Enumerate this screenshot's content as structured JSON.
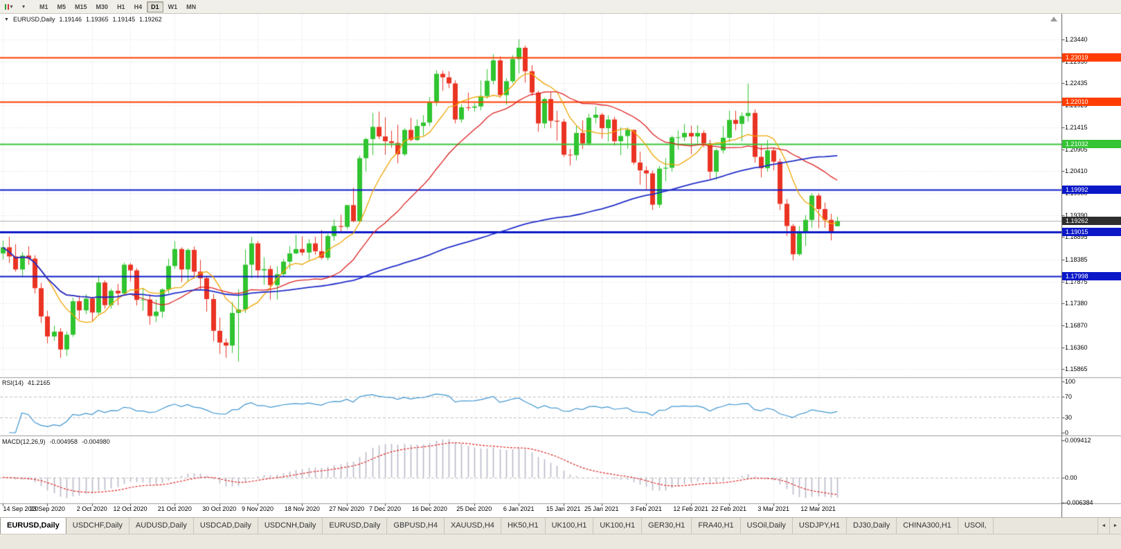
{
  "icons": {
    "ohlc_marker": "▼",
    "dropdown_caret": "▾",
    "scroll_left": "◄",
    "scroll_right": "►"
  },
  "colors": {
    "grid": "#dcdcdc",
    "axis_border": "#5a5a5a",
    "panel_separator": "#9c9c9c",
    "background": "#ffffff"
  },
  "toolbar": {
    "timeframes": [
      "M1",
      "M5",
      "M15",
      "M30",
      "H1",
      "H4",
      "D1",
      "W1",
      "MN"
    ],
    "selected_timeframe": "D1"
  },
  "chart_header": {
    "symbol": "EURUSD,Daily",
    "open": "1.19146",
    "high": "1.19365",
    "low": "1.19145",
    "close": "1.19262"
  },
  "price_axis": {
    "labels": [
      "1.23440",
      "1.22930",
      "1.22435",
      "1.21925",
      "1.21415",
      "1.20905",
      "1.20410",
      "1.19900",
      "1.19390",
      "1.18895",
      "1.18385",
      "1.17875",
      "1.17380",
      "1.16870",
      "1.16360",
      "1.15865"
    ]
  },
  "hlines": [
    {
      "label": "1.23019",
      "price": 1.23019,
      "color": "#ff3d00",
      "width": 2
    },
    {
      "label": "1.22010",
      "price": 1.2201,
      "color": "#ff3d00",
      "width": 2
    },
    {
      "label": "1.21032",
      "price": 1.21032,
      "color": "#35c435",
      "width": 2
    },
    {
      "label": "1.19992",
      "price": 1.19992,
      "color": "#0a18c8",
      "width": 2
    },
    {
      "label": "1.19015",
      "price": 1.19015,
      "color": "#0a18c8",
      "width": 3
    },
    {
      "label": "1.17998",
      "price": 1.17998,
      "color": "#0a18c8",
      "width": 2
    }
  ],
  "current_price": {
    "label": "1.19262",
    "price": 1.19262,
    "tag_color": "#2d2d2d",
    "line_color": "#b0b0b0"
  },
  "rsi": {
    "title": "RSI(14)",
    "value": "41.2165",
    "axis_labels": [
      "100",
      "70",
      "30",
      "0"
    ],
    "levels": [
      70,
      30
    ],
    "line_color": "#3e95d0"
  },
  "macd": {
    "title": "MACD(12,26,9)",
    "value": "-0.004958",
    "signal_value": "-0.004980",
    "axis_labels": [
      "0.009412",
      "0.00",
      "-0.006384"
    ],
    "histogram_color": "#b9b9c9",
    "signal_color": "#e02020"
  },
  "date_axis": [
    [
      "14 Sep 2020",
      0
    ],
    [
      "23 Sep 2020",
      7
    ],
    [
      "2 Oct 2020",
      14
    ],
    [
      "12 Oct 2020",
      20
    ],
    [
      "21 Oct 2020",
      27
    ],
    [
      "30 Oct 2020",
      34
    ],
    [
      "9 Nov 2020",
      40
    ],
    [
      "18 Nov 2020",
      47
    ],
    [
      "27 Nov 2020",
      54
    ],
    [
      "7 Dec 2020",
      60
    ],
    [
      "16 Dec 2020",
      67
    ],
    [
      "25 Dec 2020",
      74
    ],
    [
      "6 Jan 2021",
      81
    ],
    [
      "15 Jan 2021",
      88
    ],
    [
      "25 Jan 2021",
      94
    ],
    [
      "3 Feb 2021",
      101
    ],
    [
      "12 Feb 2021",
      108
    ],
    [
      "22 Feb 2021",
      114
    ],
    [
      "3 Mar 2021",
      121
    ],
    [
      "12 Mar 2021",
      128
    ]
  ],
  "tabs": {
    "items": [
      {
        "label": "EURUSD,Daily",
        "selected": true
      },
      {
        "label": "USDCHF,Daily",
        "selected": false
      },
      {
        "label": "AUDUSD,Daily",
        "selected": false
      },
      {
        "label": "USDCAD,Daily",
        "selected": false
      },
      {
        "label": "USDCNH,Daily",
        "selected": false
      },
      {
        "label": "EURUSD,Daily",
        "selected": false
      },
      {
        "label": "GBPUSD,H4",
        "selected": false
      },
      {
        "label": "XAUUSD,H4",
        "selected": false
      },
      {
        "label": "HK50,H1",
        "selected": false
      },
      {
        "label": "UK100,H1",
        "selected": false
      },
      {
        "label": "UK100,H1",
        "selected": false
      },
      {
        "label": "GER30,H1",
        "selected": false
      },
      {
        "label": "FRA40,H1",
        "selected": false
      },
      {
        "label": "USOil,Daily",
        "selected": false
      },
      {
        "label": "USDJPY,H1",
        "selected": false
      },
      {
        "label": "DJ30,Daily",
        "selected": false
      },
      {
        "label": "CHINA300,H1",
        "selected": false
      },
      {
        "label": "USOil,",
        "selected": false
      }
    ]
  },
  "chart_data": {
    "type": "candlestick",
    "symbol": "EURUSD",
    "timeframe": "Daily",
    "ylim": [
      1.1567,
      1.2403
    ],
    "rsi_range": [
      0,
      100
    ],
    "macd_range": [
      -0.006384,
      0.009412
    ],
    "up_color": "#30c430",
    "down_color": "#ea3323",
    "moving_averages": [
      {
        "name": "fast",
        "period": 8,
        "color": "#efa500",
        "width": 1.3
      },
      {
        "name": "medium",
        "period": 21,
        "color": "#dd2020",
        "width": 1.3
      },
      {
        "name": "slow",
        "period": 90,
        "color": "#1f2cc8",
        "width": 1.8
      }
    ],
    "candles": [
      [
        1.1852,
        1.1881,
        1.1838,
        1.1866
      ],
      [
        1.1866,
        1.189,
        1.183,
        1.1845
      ],
      [
        1.1845,
        1.1873,
        1.181,
        1.1815
      ],
      [
        1.1815,
        1.1855,
        1.18,
        1.1847
      ],
      [
        1.1847,
        1.1868,
        1.1826,
        1.184
      ],
      [
        1.184,
        1.1848,
        1.176,
        1.1772
      ],
      [
        1.1772,
        1.1784,
        1.1692,
        1.1707
      ],
      [
        1.1707,
        1.172,
        1.1645,
        1.1661
      ],
      [
        1.1661,
        1.1686,
        1.1651,
        1.1672
      ],
      [
        1.1672,
        1.168,
        1.1612,
        1.1631
      ],
      [
        1.1631,
        1.1672,
        1.1616,
        1.1665
      ],
      [
        1.1665,
        1.175,
        1.166,
        1.1742
      ],
      [
        1.1742,
        1.1755,
        1.17,
        1.1721
      ],
      [
        1.1721,
        1.1758,
        1.1712,
        1.1748
      ],
      [
        1.1748,
        1.1752,
        1.1695,
        1.1716
      ],
      [
        1.1716,
        1.1798,
        1.171,
        1.1785
      ],
      [
        1.1785,
        1.179,
        1.1725,
        1.1733
      ],
      [
        1.1733,
        1.1771,
        1.1725,
        1.1766
      ],
      [
        1.1766,
        1.1782,
        1.1733,
        1.176
      ],
      [
        1.176,
        1.1831,
        1.1755,
        1.1826
      ],
      [
        1.1826,
        1.183,
        1.1788,
        1.1813
      ],
      [
        1.1813,
        1.1818,
        1.1732,
        1.1745
      ],
      [
        1.1745,
        1.1772,
        1.172,
        1.1746
      ],
      [
        1.1746,
        1.1758,
        1.1688,
        1.1708
      ],
      [
        1.1708,
        1.1746,
        1.1694,
        1.1718
      ],
      [
        1.1718,
        1.1772,
        1.1704,
        1.1769
      ],
      [
        1.1769,
        1.184,
        1.176,
        1.1823
      ],
      [
        1.1823,
        1.188,
        1.1817,
        1.1862
      ],
      [
        1.1862,
        1.1866,
        1.1786,
        1.1815
      ],
      [
        1.1815,
        1.1864,
        1.1786,
        1.186
      ],
      [
        1.186,
        1.1868,
        1.18,
        1.181
      ],
      [
        1.181,
        1.1837,
        1.177,
        1.1795
      ],
      [
        1.1795,
        1.18,
        1.1718,
        1.1747
      ],
      [
        1.1747,
        1.1759,
        1.165,
        1.1674
      ],
      [
        1.1674,
        1.1704,
        1.1621,
        1.1647
      ],
      [
        1.1647,
        1.1656,
        1.1612,
        1.164
      ],
      [
        1.164,
        1.174,
        1.1623,
        1.1715
      ],
      [
        1.1715,
        1.177,
        1.1603,
        1.1723
      ],
      [
        1.1723,
        1.1861,
        1.1715,
        1.1826
      ],
      [
        1.1826,
        1.189,
        1.1795,
        1.1875
      ],
      [
        1.1875,
        1.188,
        1.1795,
        1.1813
      ],
      [
        1.1813,
        1.1843,
        1.178,
        1.1816
      ],
      [
        1.1816,
        1.1824,
        1.1746,
        1.1779
      ],
      [
        1.1779,
        1.1823,
        1.1746,
        1.1804
      ],
      [
        1.1804,
        1.1839,
        1.1799,
        1.1833
      ],
      [
        1.1833,
        1.1869,
        1.1815,
        1.1852
      ],
      [
        1.1852,
        1.1895,
        1.185,
        1.1862
      ],
      [
        1.1862,
        1.1891,
        1.1847,
        1.1854
      ],
      [
        1.1854,
        1.1885,
        1.1837,
        1.1875
      ],
      [
        1.1875,
        1.189,
        1.1849,
        1.1857
      ],
      [
        1.1857,
        1.1906,
        1.1838,
        1.1842
      ],
      [
        1.1842,
        1.1897,
        1.1836,
        1.1892
      ],
      [
        1.1892,
        1.193,
        1.1881,
        1.1915
      ],
      [
        1.1915,
        1.1941,
        1.19,
        1.1913
      ],
      [
        1.1913,
        1.1964,
        1.1908,
        1.1963
      ],
      [
        1.1963,
        1.2003,
        1.1924,
        1.1926
      ],
      [
        1.1926,
        1.2077,
        1.1922,
        1.2071
      ],
      [
        1.2071,
        1.2118,
        1.204,
        1.2115
      ],
      [
        1.2115,
        1.2175,
        1.2078,
        1.2143
      ],
      [
        1.2143,
        1.2178,
        1.2115,
        1.2121
      ],
      [
        1.2121,
        1.2165,
        1.2079,
        1.211
      ],
      [
        1.211,
        1.2134,
        1.2095,
        1.2106
      ],
      [
        1.2106,
        1.2148,
        1.2059,
        1.208
      ],
      [
        1.208,
        1.214,
        1.2076,
        1.2136
      ],
      [
        1.2136,
        1.2164,
        1.211,
        1.2113
      ],
      [
        1.2113,
        1.216,
        1.211,
        1.2145
      ],
      [
        1.2145,
        1.217,
        1.2123,
        1.2153
      ],
      [
        1.2153,
        1.2212,
        1.2146,
        1.2199
      ],
      [
        1.2199,
        1.2273,
        1.2191,
        1.2265
      ],
      [
        1.2265,
        1.2272,
        1.2226,
        1.2257
      ],
      [
        1.2257,
        1.2271,
        1.2232,
        1.2243
      ],
      [
        1.2243,
        1.225,
        1.2151,
        1.216
      ],
      [
        1.216,
        1.2195,
        1.2153,
        1.2188
      ],
      [
        1.2188,
        1.2222,
        1.218,
        1.2187
      ],
      [
        1.2187,
        1.2198,
        1.2178,
        1.219
      ],
      [
        1.219,
        1.225,
        1.2181,
        1.2214
      ],
      [
        1.2214,
        1.2276,
        1.2208,
        1.2249
      ],
      [
        1.2249,
        1.231,
        1.2241,
        1.2296
      ],
      [
        1.2296,
        1.2305,
        1.221,
        1.2216
      ],
      [
        1.2216,
        1.2255,
        1.2194,
        1.2248
      ],
      [
        1.2248,
        1.2308,
        1.2243,
        1.2299
      ],
      [
        1.2299,
        1.2344,
        1.2266,
        1.2325
      ],
      [
        1.2325,
        1.233,
        1.2245,
        1.2271
      ],
      [
        1.2271,
        1.2285,
        1.2214,
        1.2222
      ],
      [
        1.2222,
        1.2226,
        1.2132,
        1.2151
      ],
      [
        1.2151,
        1.221,
        1.214,
        1.2207
      ],
      [
        1.2207,
        1.2223,
        1.214,
        1.2157
      ],
      [
        1.2157,
        1.218,
        1.2111,
        1.2155
      ],
      [
        1.2155,
        1.2161,
        1.2074,
        1.2079
      ],
      [
        1.2079,
        1.2092,
        1.2054,
        1.2078
      ],
      [
        1.2078,
        1.2145,
        1.2066,
        1.2129
      ],
      [
        1.2129,
        1.2158,
        1.2092,
        1.2105
      ],
      [
        1.2105,
        1.2173,
        1.21,
        1.2164
      ],
      [
        1.2164,
        1.219,
        1.2151,
        1.2171
      ],
      [
        1.2171,
        1.2175,
        1.2116,
        1.214
      ],
      [
        1.214,
        1.217,
        1.2109,
        1.216
      ],
      [
        1.216,
        1.2166,
        1.21,
        1.211
      ],
      [
        1.211,
        1.2142,
        1.2078,
        1.2122
      ],
      [
        1.2122,
        1.2142,
        1.2093,
        1.2136
      ],
      [
        1.2136,
        1.2137,
        1.2056,
        1.2061
      ],
      [
        1.2061,
        1.2086,
        1.201,
        1.2043
      ],
      [
        1.2043,
        1.2052,
        1.1999,
        1.2036
      ],
      [
        1.2036,
        1.2043,
        1.1952,
        1.1964
      ],
      [
        1.1964,
        1.2053,
        1.1957,
        1.2047
      ],
      [
        1.2047,
        1.2071,
        1.2018,
        1.2049
      ],
      [
        1.2049,
        1.2123,
        1.204,
        1.2119
      ],
      [
        1.2119,
        1.2135,
        1.2091,
        1.2119
      ],
      [
        1.2119,
        1.215,
        1.211,
        1.2129
      ],
      [
        1.2129,
        1.2146,
        1.208,
        1.2121
      ],
      [
        1.2121,
        1.2147,
        1.2105,
        1.2129
      ],
      [
        1.2129,
        1.2135,
        1.2096,
        1.2105
      ],
      [
        1.2105,
        1.2113,
        1.2023,
        1.204
      ],
      [
        1.204,
        1.2093,
        1.2022,
        1.2089
      ],
      [
        1.2089,
        1.2145,
        1.2082,
        1.2118
      ],
      [
        1.2118,
        1.218,
        1.2108,
        1.2159
      ],
      [
        1.2159,
        1.218,
        1.2135,
        1.215
      ],
      [
        1.215,
        1.2176,
        1.211,
        1.2168
      ],
      [
        1.2168,
        1.2243,
        1.2155,
        1.2175
      ],
      [
        1.2175,
        1.2183,
        1.2061,
        1.2074
      ],
      [
        1.2074,
        1.2101,
        1.2027,
        1.2048
      ],
      [
        1.2048,
        1.2113,
        1.204,
        1.2089
      ],
      [
        1.2089,
        1.2094,
        1.2043,
        1.2063
      ],
      [
        1.2063,
        1.207,
        1.1952,
        1.1966
      ],
      [
        1.1966,
        1.1977,
        1.1892,
        1.1915
      ],
      [
        1.1915,
        1.192,
        1.1836,
        1.185
      ],
      [
        1.185,
        1.1915,
        1.1846,
        1.1901
      ],
      [
        1.1901,
        1.194,
        1.1869,
        1.1929
      ],
      [
        1.1929,
        1.199,
        1.1911,
        1.1985
      ],
      [
        1.1985,
        1.199,
        1.191,
        1.1954
      ],
      [
        1.1954,
        1.1969,
        1.1911,
        1.1929
      ],
      [
        1.1929,
        1.1943,
        1.1882,
        1.1901
      ],
      [
        1.19146,
        1.19365,
        1.19145,
        1.19262
      ]
    ]
  }
}
